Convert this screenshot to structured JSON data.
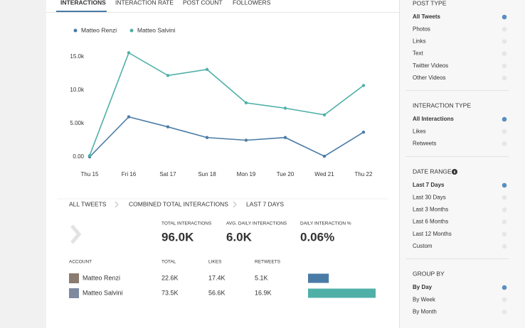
{
  "tabs": [
    "INTERACTIONS",
    "INTERACTION RATE",
    "POST COUNT",
    "FOLLOWERS"
  ],
  "active_tab": 0,
  "chart_data": {
    "type": "line",
    "categories": [
      "Thu 15",
      "Fri 16",
      "Sat 17",
      "Sun 18",
      "Mon 19",
      "Tue 20",
      "Wed 21",
      "Thu 22"
    ],
    "series": [
      {
        "name": "Matteo Renzi",
        "color": "#4a7ba6",
        "values": [
          0,
          6000,
          4500,
          2900,
          2500,
          2900,
          100,
          3700
        ]
      },
      {
        "name": "Matteo Salvini",
        "color": "#4fb0a8",
        "values": [
          200,
          15600,
          12200,
          13100,
          8100,
          7300,
          6300,
          10700
        ]
      }
    ],
    "ylim": [
      0,
      17000
    ],
    "yticks": [
      {
        "value": 0,
        "label": "0.00"
      },
      {
        "value": 5000,
        "label": "5.00k"
      },
      {
        "value": 10000,
        "label": "10.0k"
      },
      {
        "value": 15000,
        "label": "15.0k"
      }
    ]
  },
  "breadcrumb": [
    "ALL TWEETS",
    "COMBINED TOTAL INTERACTIONS",
    "LAST 7 DAYS"
  ],
  "stats": [
    {
      "label": "TOTAL INTERACTIONS",
      "value": "96.0K"
    },
    {
      "label": "AVG. DAILY INTERACTIONS",
      "value": "6.0K"
    },
    {
      "label": "DAILY INTERACTION %",
      "value": "0.06%"
    }
  ],
  "table": {
    "headers": [
      "ACCOUNT",
      "TOTAL",
      "LIKES",
      "RETWEETS"
    ],
    "rows": [
      {
        "account": "Matteo Renzi",
        "total": {
          "value": 22600,
          "label": "22.6K"
        },
        "likes": "17.4K",
        "retweets": "5.1K"
      },
      {
        "account": "Matteo Salvini",
        "total": {
          "value": 73500,
          "label": "73.5K"
        },
        "likes": "56.6K",
        "retweets": "16.9K"
      }
    ]
  },
  "filters": [
    {
      "title": "POST TYPE",
      "options": [
        "All Tweets",
        "Photos",
        "Links",
        "Text",
        "Twitter Videos",
        "Other Videos"
      ],
      "selected": 0
    },
    {
      "title": "INTERACTION TYPE",
      "options": [
        "All Interactions",
        "Likes",
        "Retweets"
      ],
      "selected": 0
    },
    {
      "title": "DATE RANGE",
      "options": [
        "Last 7 Days",
        "Last 30 Days",
        "Last 3 Months",
        "Last 6 Months",
        "Last 12 Months",
        "Custom"
      ],
      "selected": 0
    },
    {
      "title": "GROUP BY",
      "options": [
        "By Day",
        "By Week",
        "By Month"
      ],
      "selected": 0
    }
  ]
}
